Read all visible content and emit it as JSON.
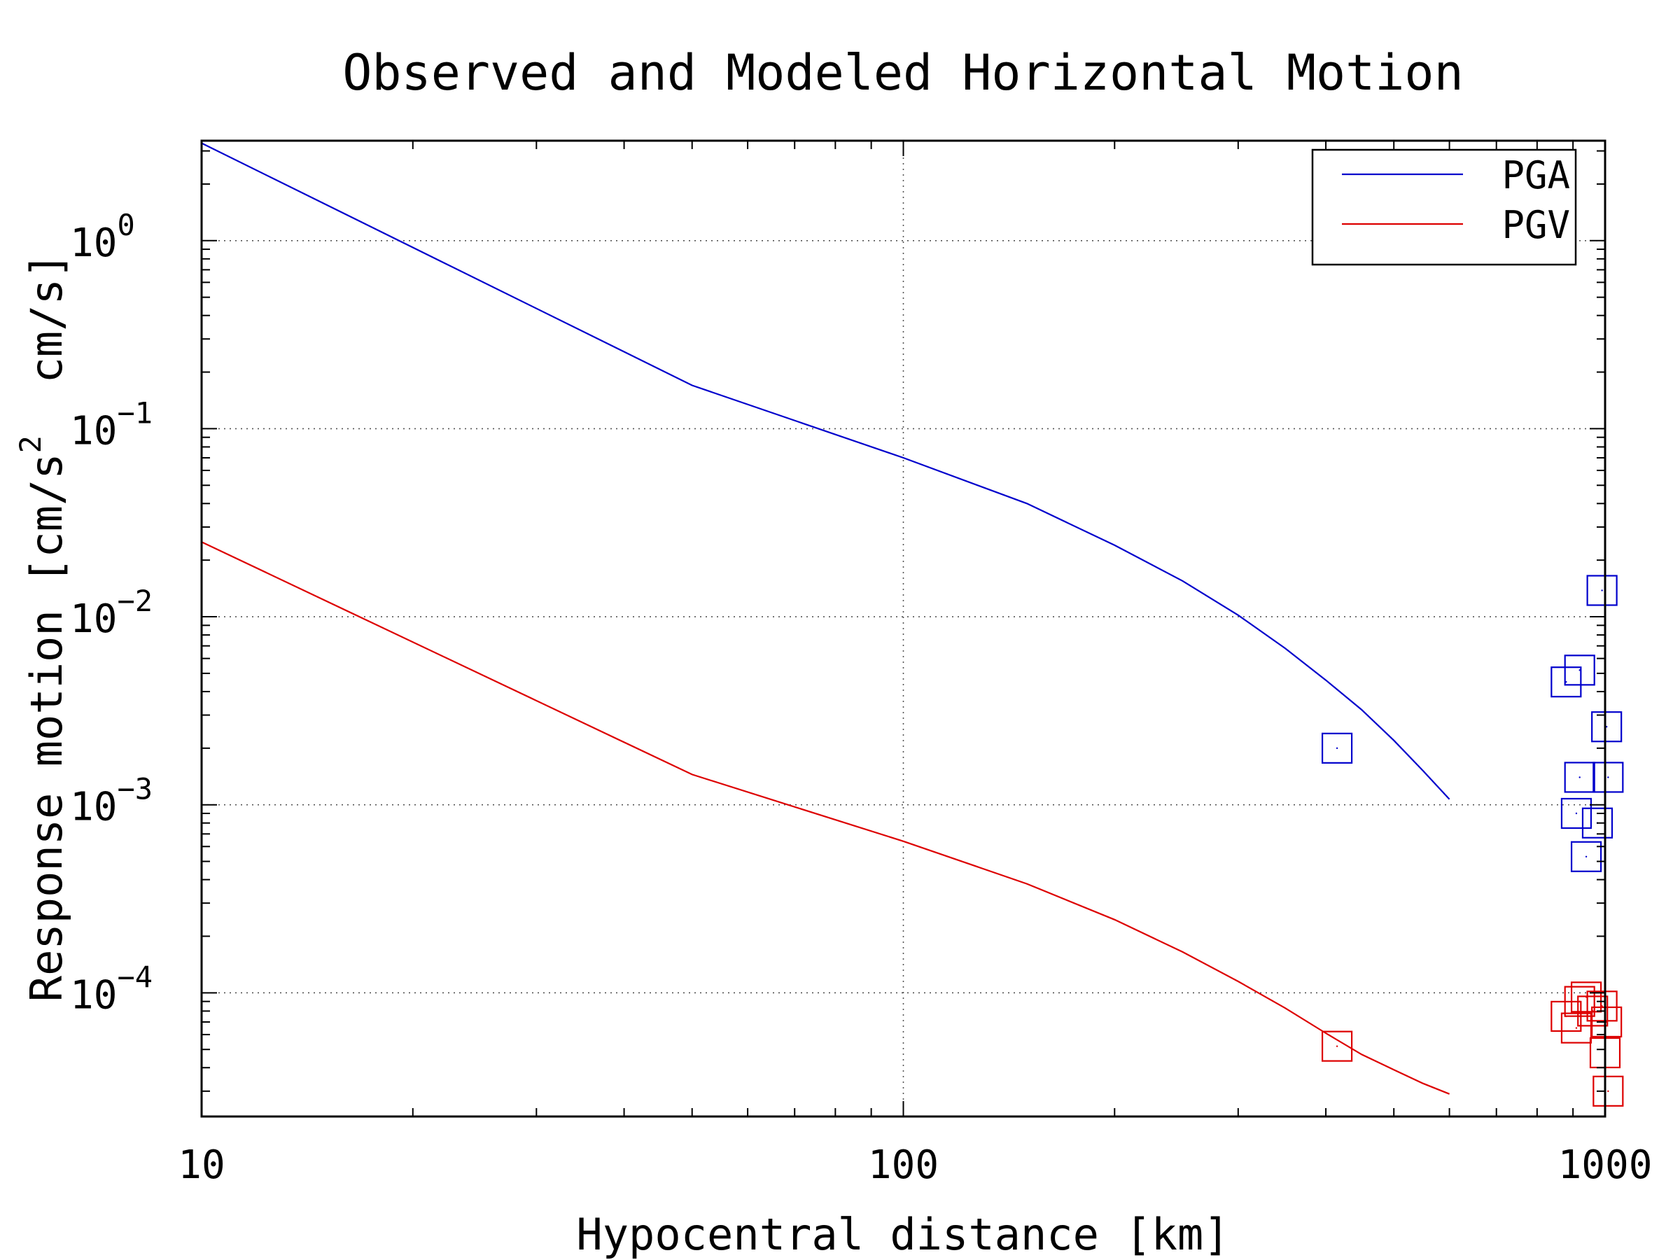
{
  "chart_data": {
    "type": "scatter",
    "title": "Observed and Modeled Horizontal Motion",
    "xlabel": "Hypocentral distance [km]",
    "ylabel": "Response motion [cm/s2 cm/s]",
    "ylabel_parts": {
      "pre": "Response motion [cm/s",
      "sup": "2",
      "post": "  cm/s]"
    },
    "xscale": "log",
    "yscale": "log",
    "xlim": [
      10,
      1000
    ],
    "ylim": [
      2.2e-05,
      3.4
    ],
    "x_ticks": [
      {
        "value": 10,
        "label": "10"
      },
      {
        "value": 100,
        "label": "100"
      },
      {
        "value": 1000,
        "label": "1000"
      }
    ],
    "y_ticks": [
      {
        "value": 1,
        "base": "10",
        "exp": "0"
      },
      {
        "value": 0.1,
        "base": "10",
        "exp": "−1"
      },
      {
        "value": 0.01,
        "base": "10",
        "exp": "−2"
      },
      {
        "value": 0.001,
        "base": "10",
        "exp": "−3"
      },
      {
        "value": 0.0001,
        "base": "10",
        "exp": "−4"
      }
    ],
    "grid": true,
    "legend": {
      "placement": "top-right"
    },
    "series": [
      {
        "name": "PGA",
        "kind": "line",
        "color": "#0000cc",
        "x": [
          10,
          50,
          100,
          150,
          200,
          250,
          300,
          350,
          400,
          450,
          500,
          550,
          600
        ],
        "y": [
          3.3,
          0.17,
          0.07,
          0.04,
          0.024,
          0.0155,
          0.0102,
          0.0068,
          0.0046,
          0.0032,
          0.0022,
          0.00152,
          0.00107
        ]
      },
      {
        "name": "PGV",
        "kind": "line",
        "color": "#dd0000",
        "x": [
          10,
          50,
          100,
          150,
          200,
          250,
          300,
          350,
          400,
          450,
          500,
          550,
          600
        ],
        "y": [
          0.025,
          0.00145,
          0.00064,
          0.00038,
          0.000245,
          0.000165,
          0.000115,
          8.3e-05,
          6.1e-05,
          4.7e-05,
          3.9e-05,
          3.3e-05,
          2.9e-05
        ]
      },
      {
        "kind": "scatter",
        "marker": "square",
        "color": "#0000cc",
        "x": [
          415,
          880,
          920,
          940,
          975,
          990,
          1005,
          1010,
          920,
          910
        ],
        "y": [
          0.002,
          0.0045,
          0.0052,
          0.00053,
          0.0008,
          0.0138,
          0.0026,
          0.0014,
          0.0014,
          0.0009
        ]
      },
      {
        "kind": "scatter",
        "marker": "square",
        "color": "#dd0000",
        "x": [
          415,
          880,
          910,
          920,
          940,
          960,
          990,
          1000,
          1005,
          1010
        ],
        "y": [
          5.2e-05,
          7.5e-05,
          6.5e-05,
          9e-05,
          9.5e-05,
          8e-05,
          8.5e-05,
          4.8e-05,
          7e-05,
          3e-05
        ]
      }
    ]
  }
}
